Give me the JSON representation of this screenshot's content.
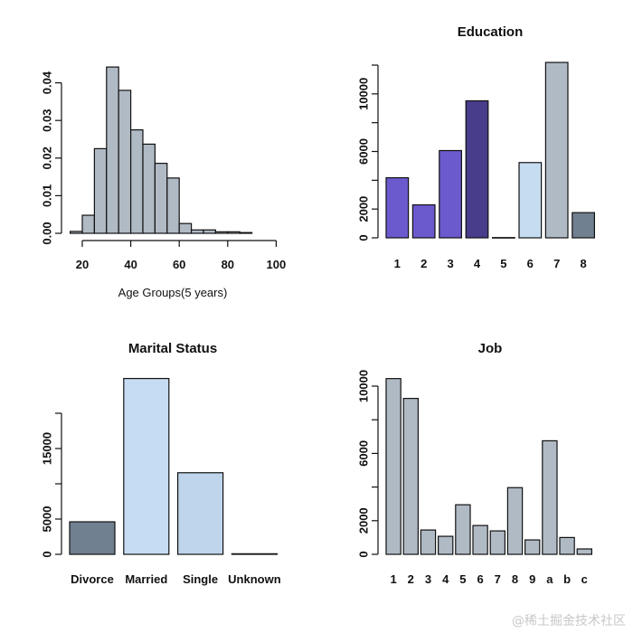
{
  "chart_data": [
    {
      "id": "age",
      "type": "bar",
      "subtype": "histogram",
      "title": "",
      "xlabel": "Age Groups(5 years)",
      "ylabel": "",
      "bins": [
        [
          15,
          20
        ],
        [
          20,
          25
        ],
        [
          25,
          30
        ],
        [
          30,
          35
        ],
        [
          35,
          40
        ],
        [
          40,
          45
        ],
        [
          45,
          50
        ],
        [
          50,
          55
        ],
        [
          55,
          60
        ],
        [
          60,
          65
        ],
        [
          65,
          70
        ],
        [
          70,
          75
        ],
        [
          75,
          80
        ],
        [
          80,
          85
        ],
        [
          85,
          90
        ]
      ],
      "values": [
        0.0005,
        0.0048,
        0.0225,
        0.0442,
        0.038,
        0.0275,
        0.0237,
        0.0186,
        0.0147,
        0.0026,
        0.0009,
        0.0009,
        0.0004,
        0.0004,
        0.0002
      ],
      "xlim": [
        15,
        100
      ],
      "ylim": [
        0,
        0.044
      ],
      "xticks": [
        20,
        40,
        60,
        80,
        100
      ],
      "yticks": [
        0,
        0.01,
        0.02,
        0.03,
        0.04
      ],
      "ytick_labels": [
        "0.00",
        "0.01",
        "0.02",
        "0.03",
        "0.04"
      ],
      "colors": [
        "#B0BAC5"
      ],
      "grid": false
    },
    {
      "id": "education",
      "type": "bar",
      "title": "Education",
      "xlabel": "",
      "ylabel": "",
      "categories": [
        "1",
        "2",
        "3",
        "4",
        "5",
        "6",
        "7",
        "8"
      ],
      "values": [
        4176,
        2291,
        6062,
        9520,
        18,
        5228,
        12186,
        1750
      ],
      "ylim": [
        0,
        12000
      ],
      "yticks": [
        0,
        2000,
        4000,
        6000,
        8000,
        10000,
        12000
      ],
      "ytick_labels": [
        "0",
        "2000",
        "",
        "6000",
        "",
        "10000",
        ""
      ],
      "colors": [
        "#6A5ACD",
        "#6A5ACD",
        "#6A5ACD",
        "#483D8B",
        "#FFFFFF",
        "#C6DCF0",
        "#B0BAC5",
        "#708090"
      ],
      "grid": false
    },
    {
      "id": "marital",
      "type": "bar",
      "title": "Marital Status",
      "xlabel": "",
      "ylabel": "",
      "categories": [
        "Divorce",
        "Married",
        "Single",
        "Unknown"
      ],
      "values": [
        4612,
        24928,
        11568,
        80
      ],
      "ylim": [
        0,
        20000
      ],
      "yticks": [
        0,
        5000,
        10000,
        15000,
        20000
      ],
      "ytick_labels": [
        "0",
        "5000",
        "",
        "15000",
        ""
      ],
      "colors": [
        "#708090",
        "#C6DCF2",
        "#BFD5EC",
        "#FFFFFF"
      ],
      "grid": false
    },
    {
      "id": "job",
      "type": "bar",
      "title": "Job",
      "xlabel": "",
      "ylabel": "",
      "categories": [
        "1",
        "2",
        "3",
        "4",
        "5",
        "6",
        "7",
        "8",
        "9",
        "a",
        "b",
        "c"
      ],
      "values": [
        10448,
        9269,
        1447,
        1072,
        2947,
        1714,
        1393,
        3965,
        857,
        6751,
        1000,
        321
      ],
      "ylim": [
        0,
        10000
      ],
      "yticks": [
        0,
        2000,
        4000,
        6000,
        8000,
        10000
      ],
      "ytick_labels": [
        "0",
        "2000",
        "",
        "6000",
        "",
        "10000"
      ],
      "colors": [
        "#B0BAC5"
      ],
      "grid": false
    }
  ],
  "watermark": "@稀土掘金技术社区"
}
